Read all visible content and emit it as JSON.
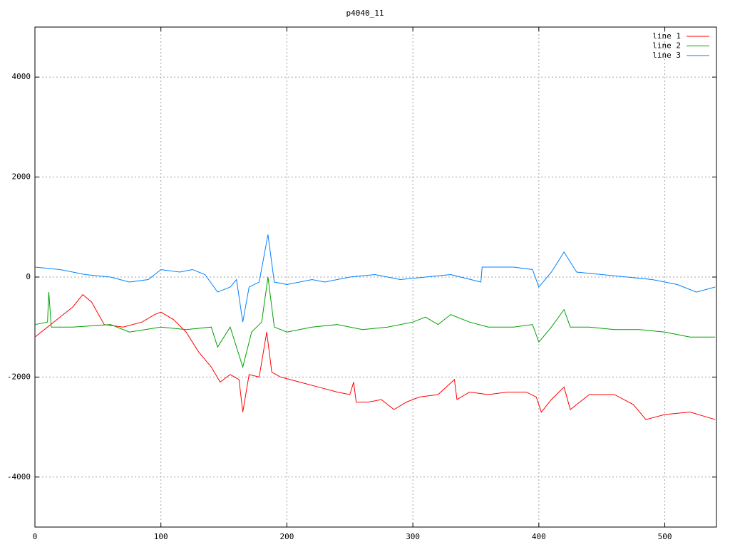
{
  "chart_data": {
    "type": "line",
    "title": "p4040_11",
    "xlim": [
      0,
      541
    ],
    "ylim": [
      -5000,
      5000
    ],
    "xticks": [
      0,
      100,
      200,
      300,
      400,
      500
    ],
    "yticks": [
      -4000,
      -2000,
      0,
      2000,
      4000
    ],
    "grid": true,
    "legend": "top-right",
    "series": [
      {
        "name": "line 1",
        "color": "#ff0000",
        "x": [
          0,
          10,
          20,
          30,
          38,
          45,
          55,
          70,
          85,
          95,
          100,
          110,
          120,
          130,
          140,
          147,
          155,
          162,
          165,
          170,
          178,
          184,
          188,
          195,
          210,
          225,
          240,
          250,
          253,
          255,
          265,
          275,
          285,
          295,
          305,
          320,
          333,
          335,
          345,
          360,
          375,
          390,
          398,
          402,
          410,
          420,
          425,
          440,
          460,
          475,
          485,
          500,
          520,
          540
        ],
        "values": [
          -1200,
          -1000,
          -800,
          -600,
          -350,
          -500,
          -950,
          -1000,
          -900,
          -750,
          -700,
          -850,
          -1100,
          -1500,
          -1800,
          -2100,
          -1950,
          -2050,
          -2700,
          -1950,
          -2000,
          -1100,
          -1900,
          -2000,
          -2100,
          -2200,
          -2300,
          -2350,
          -2100,
          -2500,
          -2500,
          -2450,
          -2650,
          -2500,
          -2400,
          -2350,
          -2050,
          -2450,
          -2300,
          -2350,
          -2300,
          -2300,
          -2400,
          -2700,
          -2450,
          -2200,
          -2650,
          -2350,
          -2350,
          -2550,
          -2850,
          -2750,
          -2700,
          -2850
        ]
      },
      {
        "name": "line 2",
        "color": "#00a000",
        "x": [
          0,
          10,
          11,
          13,
          30,
          60,
          75,
          100,
          120,
          140,
          145,
          155,
          165,
          172,
          180,
          185,
          190,
          200,
          220,
          240,
          260,
          280,
          300,
          310,
          320,
          330,
          345,
          360,
          380,
          395,
          400,
          410,
          420,
          425,
          440,
          460,
          480,
          500,
          520,
          540
        ],
        "values": [
          -950,
          -900,
          -300,
          -1000,
          -1000,
          -950,
          -1100,
          -1000,
          -1050,
          -1000,
          -1400,
          -1000,
          -1800,
          -1100,
          -900,
          0,
          -1000,
          -1100,
          -1000,
          -950,
          -1050,
          -1000,
          -900,
          -800,
          -950,
          -750,
          -900,
          -1000,
          -1000,
          -950,
          -1300,
          -1000,
          -650,
          -1000,
          -1000,
          -1050,
          -1050,
          -1100,
          -1200,
          -1200
        ]
      },
      {
        "name": "line 3",
        "color": "#0080ff",
        "x": [
          0,
          20,
          40,
          60,
          75,
          90,
          100,
          115,
          125,
          135,
          145,
          155,
          160,
          165,
          170,
          178,
          185,
          190,
          200,
          220,
          230,
          250,
          270,
          290,
          310,
          330,
          354,
          355,
          380,
          395,
          400,
          410,
          420,
          430,
          450,
          470,
          490,
          510,
          525,
          540
        ],
        "values": [
          200,
          150,
          50,
          0,
          -100,
          -50,
          150,
          100,
          150,
          50,
          -300,
          -200,
          -50,
          -900,
          -200,
          -100,
          850,
          -100,
          -150,
          -50,
          -100,
          0,
          50,
          -50,
          0,
          50,
          -100,
          200,
          200,
          150,
          -200,
          100,
          500,
          100,
          50,
          0,
          -50,
          -150,
          -300,
          -200
        ]
      }
    ]
  }
}
